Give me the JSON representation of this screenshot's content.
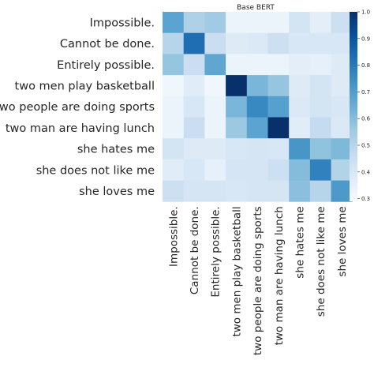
{
  "chart_data": {
    "type": "heatmap",
    "title": "Base BERT",
    "row_labels": [
      "Impossible.",
      "Cannot be done.",
      "Entirely possible.",
      "two men play basketball",
      "two people are doing sports",
      "two man are having lunch",
      "she hates me",
      "she does not like me",
      "she loves me"
    ],
    "col_labels": [
      "Impossible.",
      "Cannot be done.",
      "Entirely possible.",
      "two men play basketball",
      "two people are doing sports",
      "two man are having lunch",
      "she hates me",
      "she does not like me",
      "she loves me"
    ],
    "values": [
      [
        0.68,
        0.52,
        0.55,
        0.33,
        0.33,
        0.33,
        0.42,
        0.36,
        0.44
      ],
      [
        0.5,
        0.83,
        0.45,
        0.38,
        0.39,
        0.44,
        0.4,
        0.4,
        0.4
      ],
      [
        0.57,
        0.45,
        0.67,
        0.33,
        0.33,
        0.33,
        0.36,
        0.35,
        0.38
      ],
      [
        0.32,
        0.37,
        0.32,
        1.0,
        0.62,
        0.57,
        0.38,
        0.42,
        0.38
      ],
      [
        0.33,
        0.4,
        0.33,
        0.62,
        0.76,
        0.69,
        0.39,
        0.42,
        0.4
      ],
      [
        0.33,
        0.45,
        0.33,
        0.56,
        0.68,
        1.0,
        0.37,
        0.47,
        0.39
      ],
      [
        0.42,
        0.38,
        0.38,
        0.4,
        0.41,
        0.4,
        0.72,
        0.58,
        0.61
      ],
      [
        0.37,
        0.4,
        0.35,
        0.41,
        0.41,
        0.44,
        0.6,
        0.78,
        0.51
      ],
      [
        0.44,
        0.41,
        0.41,
        0.4,
        0.41,
        0.41,
        0.59,
        0.5,
        0.71
      ]
    ],
    "vmin": 0.29,
    "vmax": 1.0,
    "colormap": "Blues",
    "colormap_stops": [
      "#f7fbff",
      "#deebf7",
      "#c6dbef",
      "#9ecae1",
      "#6baed6",
      "#4292c6",
      "#2171b5",
      "#08519c",
      "#08306b"
    ],
    "colorbar_ticks": [
      1.0,
      0.9,
      0.8,
      0.7,
      0.6,
      0.5,
      0.4,
      0.3
    ],
    "colorbar_tick_labels": [
      "1.0",
      "0.9",
      "0.8",
      "0.7",
      "0.6",
      "0.5",
      "0.4",
      "0.3"
    ],
    "grid": false
  }
}
